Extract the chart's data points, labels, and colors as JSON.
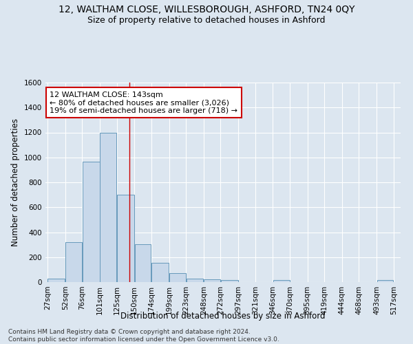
{
  "title": "12, WALTHAM CLOSE, WILLESBOROUGH, ASHFORD, TN24 0QY",
  "subtitle": "Size of property relative to detached houses in Ashford",
  "xlabel": "Distribution of detached houses by size in Ashford",
  "ylabel": "Number of detached properties",
  "footer_line1": "Contains HM Land Registry data © Crown copyright and database right 2024.",
  "footer_line2": "Contains public sector information licensed under the Open Government Licence v3.0.",
  "annotation_line1": "12 WALTHAM CLOSE: 143sqm",
  "annotation_line2": "← 80% of detached houses are smaller (3,026)",
  "annotation_line3": "19% of semi-detached houses are larger (718) →",
  "bar_left_edges": [
    27,
    52,
    76,
    101,
    125,
    150,
    174,
    199,
    223,
    248,
    272,
    297,
    321,
    346,
    370,
    395,
    419,
    444,
    468,
    493
  ],
  "bar_widths": [
    25,
    24,
    25,
    24,
    25,
    24,
    25,
    24,
    25,
    24,
    25,
    24,
    25,
    24,
    25,
    24,
    25,
    24,
    25,
    24
  ],
  "bar_heights": [
    30,
    320,
    965,
    1195,
    700,
    305,
    155,
    70,
    28,
    20,
    16,
    0,
    0,
    16,
    0,
    0,
    0,
    0,
    0,
    14
  ],
  "bar_facecolor": "#c8d8ea",
  "bar_edgecolor": "#6699bb",
  "tick_labels": [
    "27sqm",
    "52sqm",
    "76sqm",
    "101sqm",
    "125sqm",
    "150sqm",
    "174sqm",
    "199sqm",
    "223sqm",
    "248sqm",
    "272sqm",
    "297sqm",
    "321sqm",
    "346sqm",
    "370sqm",
    "395sqm",
    "419sqm",
    "444sqm",
    "468sqm",
    "493sqm",
    "517sqm"
  ],
  "vline_x": 143,
  "vline_color": "#cc0000",
  "ylim": [
    0,
    1600
  ],
  "yticks": [
    0,
    200,
    400,
    600,
    800,
    1000,
    1200,
    1400,
    1600
  ],
  "bg_color": "#dce6f0",
  "plot_bg_color": "#dce6f0",
  "grid_color": "#ffffff",
  "title_fontsize": 10,
  "subtitle_fontsize": 9,
  "axis_label_fontsize": 8.5,
  "tick_fontsize": 7.5,
  "annotation_fontsize": 8,
  "annotation_box_color": "#ffffff",
  "annotation_box_edgecolor": "#cc0000",
  "footer_fontsize": 6.5
}
